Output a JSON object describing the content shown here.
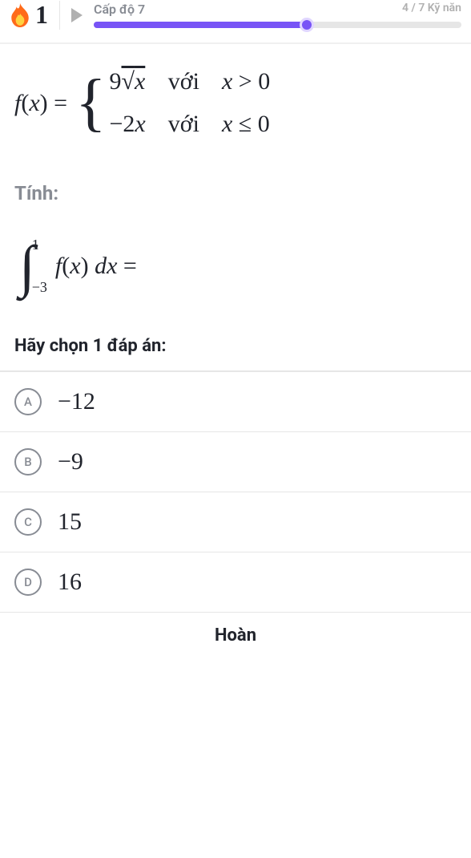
{
  "header": {
    "streak_count": "1",
    "level_label": "Cấp độ 7",
    "skills_text": "4 / 7 Kỹ năn",
    "progress_percent": 58,
    "colors": {
      "progress_fill": "#7854f6",
      "progress_bg": "#e6e6e6",
      "divider": "#e6e6e6",
      "muted_text": "#888c94"
    }
  },
  "question": {
    "func_lhs": "f(x) =",
    "case1_expr": "9√x",
    "case1_cond_word": "với",
    "case1_cond": "x > 0",
    "case2_expr": "−2x",
    "case2_cond_word": "với",
    "case2_cond": "x ≤ 0",
    "compute_label": "Tính:",
    "integral_lower": "−3",
    "integral_upper": "1",
    "integral_body": "f(x) dx =",
    "choose_label": "Hãy chọn 1 đáp án:"
  },
  "options": [
    {
      "letter": "A",
      "value": "−12"
    },
    {
      "letter": "B",
      "value": "−9"
    },
    {
      "letter": "C",
      "value": "15"
    },
    {
      "letter": "D",
      "value": "16"
    }
  ],
  "footer": {
    "button_label": "Hoàn"
  }
}
